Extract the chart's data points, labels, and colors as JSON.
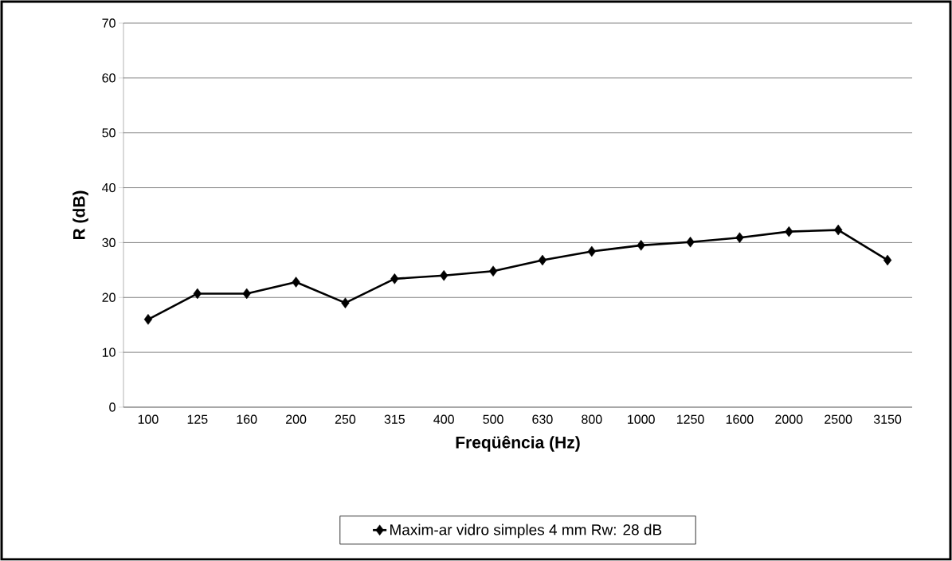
{
  "chart_data": {
    "type": "line",
    "xlabel": "Freqüência (Hz)",
    "ylabel": "R (dB)",
    "categories": [
      "100",
      "125",
      "160",
      "200",
      "250",
      "315",
      "400",
      "500",
      "630",
      "800",
      "1000",
      "1250",
      "1600",
      "2000",
      "2500",
      "3150"
    ],
    "series": [
      {
        "name": "Maxim-ar vidro simples 4 mm   Rw: 28 dB",
        "color": "#000000",
        "values": [
          16.0,
          20.7,
          20.7,
          22.8,
          19.0,
          23.4,
          24.0,
          24.8,
          26.8,
          28.4,
          29.5,
          30.1,
          30.9,
          32.0,
          32.3,
          26.8
        ]
      }
    ],
    "ylim": [
      0,
      70
    ],
    "yticks": [
      0,
      10,
      20,
      30,
      40,
      50,
      60,
      70
    ],
    "grid": "y",
    "legend": "bottom",
    "marker": "diamond",
    "line_style": "solid"
  }
}
